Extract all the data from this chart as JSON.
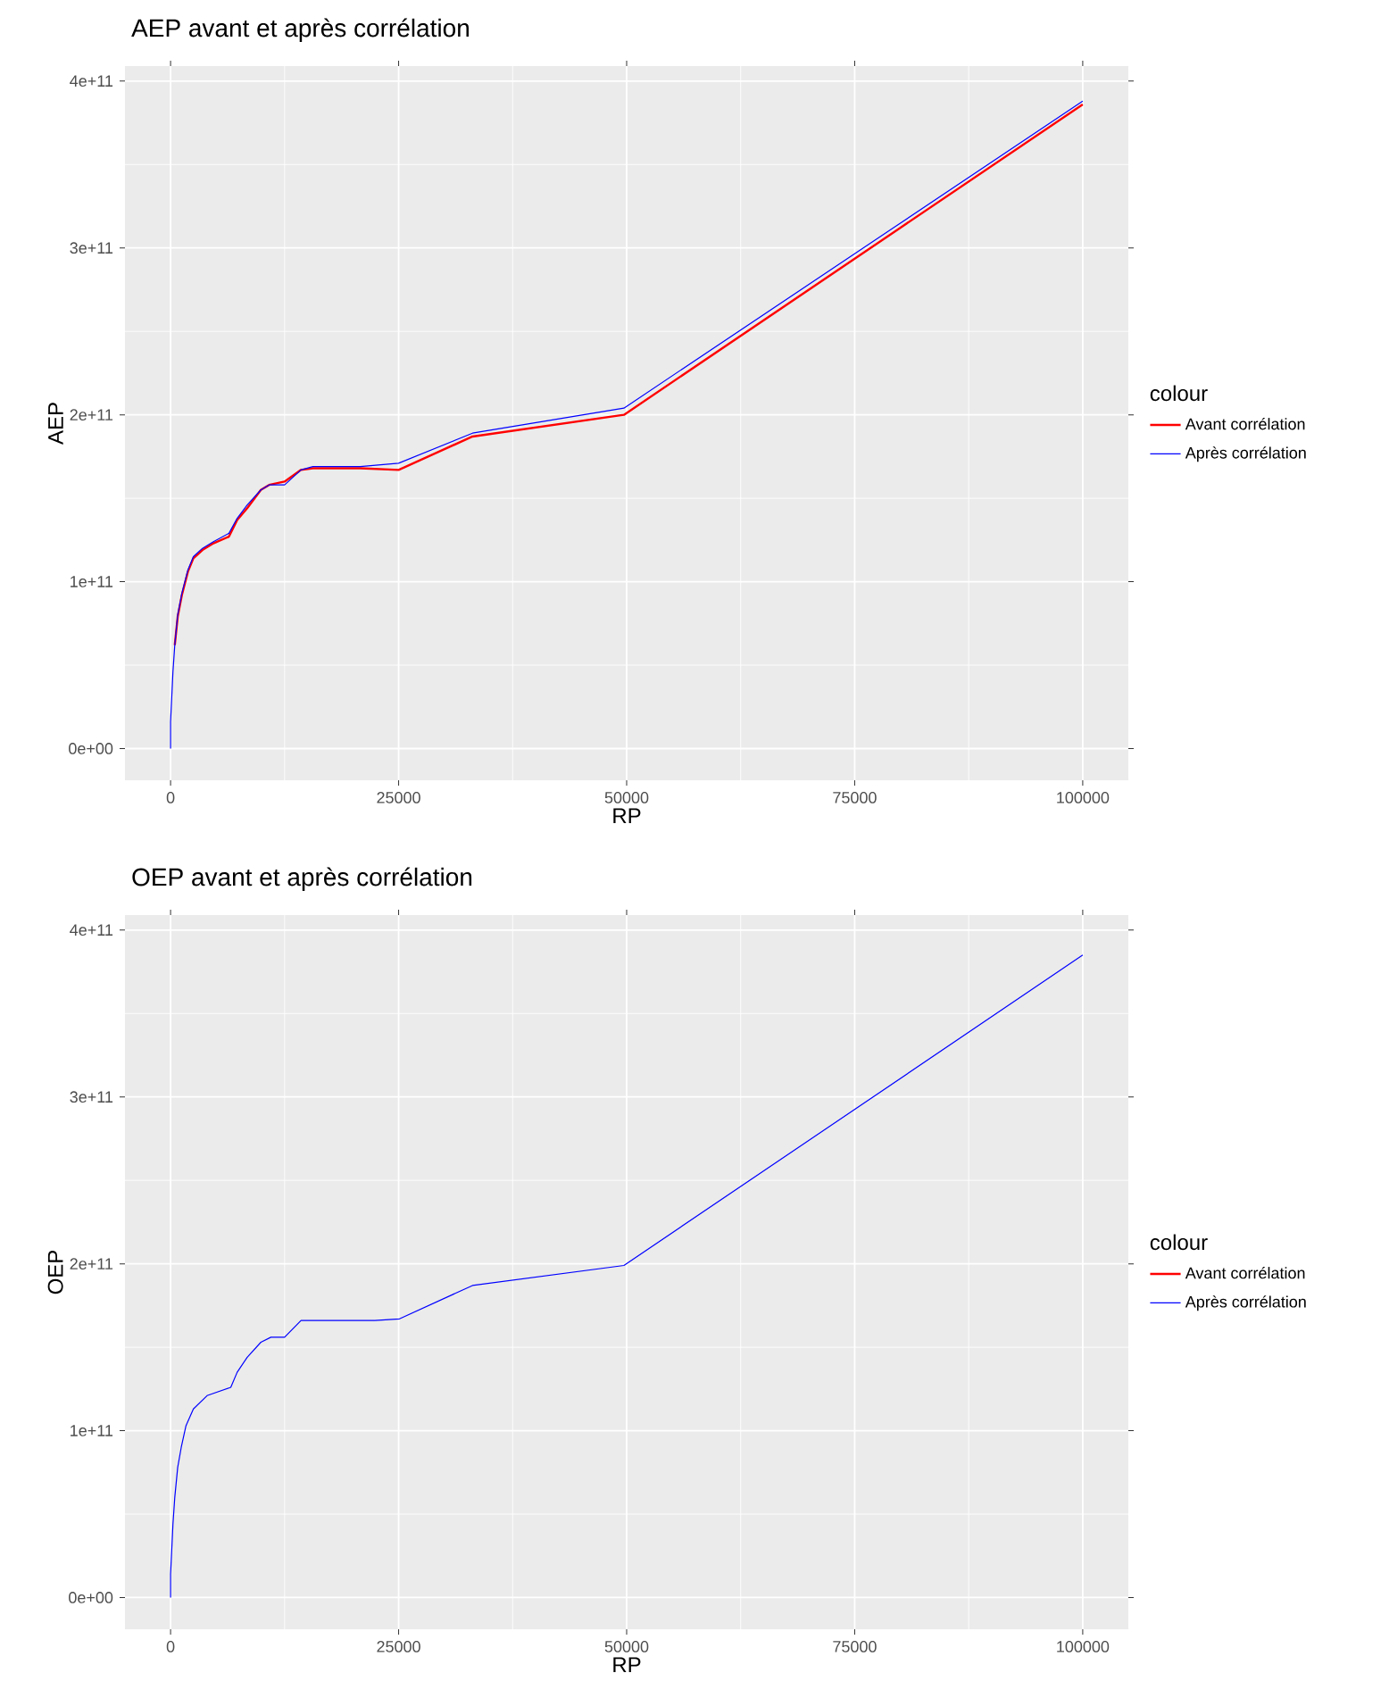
{
  "chart_data": [
    {
      "type": "line",
      "title": "AEP avant et après corrélation",
      "xlabel": "RP",
      "ylabel": "AEP",
      "legend_title": "colour",
      "legend": "right",
      "grid": true,
      "xlim": [
        -5000,
        105000
      ],
      "xticks": [
        0,
        25000,
        50000,
        75000,
        100000
      ],
      "ylim": [
        -19000000000.0,
        409000000000.0
      ],
      "yticks": [
        {
          "value": 0,
          "label": "0e+00"
        },
        {
          "value": 100000000000.0,
          "label": "1e+11"
        },
        {
          "value": 200000000000.0,
          "label": "2e+11"
        },
        {
          "value": 300000000000.0,
          "label": "3e+11"
        },
        {
          "value": 400000000000.0,
          "label": "4e+11"
        }
      ],
      "series": [
        {
          "name": "Avant corrélation",
          "color": "#ff0000",
          "x": [
            460,
            780,
            1240,
            1900,
            2500,
            3500,
            4700,
            6400,
            7300,
            8400,
            9900,
            10800,
            12500,
            14300,
            15600,
            20800,
            25000,
            33100,
            49700,
            100000
          ],
          "values": [
            62000000000.0,
            79000000000.0,
            92000000000.0,
            106000000000.0,
            114000000000.0,
            119000000000.0,
            123000000000.0,
            127000000000.0,
            137000000000.0,
            144000000000.0,
            155000000000.0,
            158000000000.0,
            160000000000.0,
            167000000000.0,
            168000000000.0,
            168000000000.0,
            167000000000.0,
            187000000000.0,
            200000000000.0,
            386000000000.0
          ]
        },
        {
          "name": "Après corrélation",
          "color": "#0000ff",
          "x": [
            0,
            0,
            260,
            460,
            780,
            1240,
            1900,
            2500,
            3500,
            4700,
            6400,
            7300,
            8400,
            9900,
            10800,
            12500,
            14300,
            15600,
            20800,
            25000,
            33100,
            49700,
            100000
          ],
          "values": [
            0,
            16000000000.0,
            46000000000.0,
            62000000000.0,
            80000000000.0,
            93000000000.0,
            107000000000.0,
            115000000000.0,
            120000000000.0,
            124000000000.0,
            129000000000.0,
            138000000000.0,
            146000000000.0,
            155000000000.0,
            158000000000.0,
            158000000000.0,
            167000000000.0,
            169000000000.0,
            169000000000.0,
            171000000000.0,
            189000000000.0,
            204000000000.0,
            388000000000.0
          ]
        }
      ]
    },
    {
      "type": "line",
      "title": "OEP avant et après corrélation",
      "xlabel": "RP",
      "ylabel": "OEP",
      "legend_title": "colour",
      "legend": "right",
      "grid": true,
      "xlim": [
        -5000,
        105000
      ],
      "xticks": [
        0,
        25000,
        50000,
        75000,
        100000
      ],
      "ylim": [
        -19000000000.0,
        409000000000.0
      ],
      "yticks": [
        {
          "value": 0,
          "label": "0e+00"
        },
        {
          "value": 100000000000.0,
          "label": "1e+11"
        },
        {
          "value": 200000000000.0,
          "label": "2e+11"
        },
        {
          "value": 300000000000.0,
          "label": "3e+11"
        },
        {
          "value": 400000000000.0,
          "label": "4e+11"
        }
      ],
      "series": [
        {
          "name": "Avant corrélation",
          "color": "#ff0000"
        },
        {
          "name": "Après corrélation",
          "color": "#0000ff",
          "x": [
            0,
            0,
            260,
            460,
            780,
            1170,
            1690,
            2500,
            4000,
            6600,
            7300,
            8400,
            9900,
            11000,
            12500,
            14300,
            22400,
            25100,
            33100,
            49700,
            100000
          ],
          "values": [
            0,
            14000000000.0,
            44000000000.0,
            60000000000.0,
            78000000000.0,
            90000000000.0,
            103000000000.0,
            113000000000.0,
            121000000000.0,
            126000000000.0,
            135000000000.0,
            144000000000.0,
            153000000000.0,
            156000000000.0,
            156000000000.0,
            166000000000.0,
            166000000000.0,
            167000000000.0,
            187000000000.0,
            199000000000.0,
            385000000000.0
          ]
        }
      ]
    }
  ]
}
